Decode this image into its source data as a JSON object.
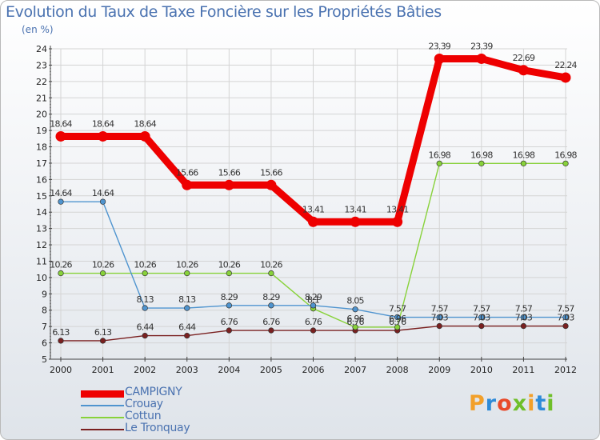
{
  "title": "Evolution du Taux de Taxe Foncière sur les Propriétés Bâties",
  "subtitle": "(en %)",
  "brand": {
    "text": "Proxiti",
    "colors": [
      "#f2a02a",
      "#2e8bd8",
      "#e84a2a",
      "#6fbf2a",
      "#f2a02a",
      "#2e8bd8",
      "#6fbf2a"
    ]
  },
  "chart_data": {
    "type": "line",
    "title": "Evolution du Taux de Taxe Foncière sur les Propriétés Bâties",
    "ylabel": "(en %)",
    "xlabel": "",
    "x": [
      "2000",
      "2001",
      "2002",
      "2003",
      "2004",
      "2005",
      "2006",
      "2007",
      "2008",
      "2009",
      "2010",
      "2011",
      "2012"
    ],
    "ylim": [
      5,
      24
    ],
    "yticks": [
      "5",
      "6",
      "7",
      "8",
      "9",
      "10",
      "11",
      "12",
      "13",
      "14",
      "15",
      "16",
      "17",
      "18",
      "19",
      "20",
      "21",
      "22",
      "23",
      "24"
    ],
    "grid": true,
    "legend_position": "bottom-left",
    "series": [
      {
        "name": "CAMPIGNY",
        "color": "#ee0000",
        "values": [
          18.64,
          18.64,
          18.64,
          15.66,
          15.66,
          15.66,
          13.41,
          13.41,
          13.41,
          23.39,
          23.39,
          22.69,
          22.24
        ],
        "labels": [
          "18.64",
          "18.64",
          "18.64",
          "15.66",
          "15.66",
          "15.66",
          "13.41",
          "13.41",
          "13.41",
          "23.39",
          "23.39",
          "22.69",
          "22.24"
        ]
      },
      {
        "name": "Crouay",
        "color": "#4f94cf",
        "values": [
          14.64,
          14.64,
          8.13,
          8.13,
          8.29,
          8.29,
          8.29,
          8.05,
          7.57,
          7.57,
          7.57,
          7.57,
          7.57
        ],
        "labels": [
          "14.64",
          "14.64",
          "8.13",
          "8.13",
          "8.29",
          "8.29",
          "8.29",
          "8.05",
          "7.57",
          "7.57",
          "7.57",
          "7.57",
          "7.57"
        ]
      },
      {
        "name": "Cottun",
        "color": "#88d23a",
        "values": [
          10.26,
          10.26,
          10.26,
          10.26,
          10.26,
          10.26,
          8.1,
          6.96,
          6.96,
          16.98,
          16.98,
          16.98,
          16.98
        ],
        "labels": [
          "10.26",
          "10.26",
          "10.26",
          "10.26",
          "10.26",
          "10.26",
          "8.1",
          "6.96",
          "6.96",
          "16.98",
          "16.98",
          "16.98",
          "16.98"
        ]
      },
      {
        "name": "Le Tronquay",
        "color": "#7a2020",
        "values": [
          6.13,
          6.13,
          6.44,
          6.44,
          6.76,
          6.76,
          6.76,
          6.76,
          6.76,
          7.03,
          7.03,
          7.03,
          7.03
        ],
        "labels": [
          "6.13",
          "6.13",
          "6.44",
          "6.44",
          "6.76",
          "6.76",
          "6.76",
          "6.76",
          "6.76",
          "7.03",
          "7.03",
          "7.03",
          "7.03"
        ]
      }
    ]
  }
}
